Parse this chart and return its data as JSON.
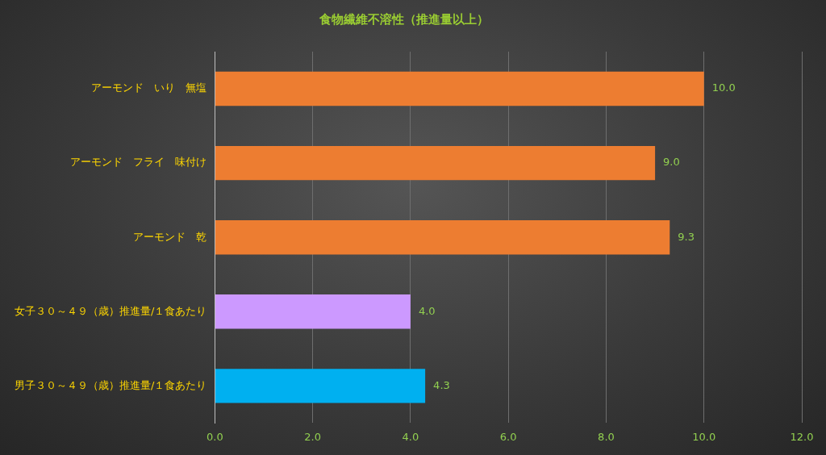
{
  "chart_data": {
    "type": "bar",
    "orientation": "horizontal",
    "title": "食物繊維不溶性（推進量以上）",
    "categories": [
      "アーモンド　いり　無塩",
      "アーモンド　フライ　味付け",
      "アーモンド　乾",
      "女子３０～４９（歳）推進量/１食あたり",
      "男子３０～４９（歳）推進量/１食あたり"
    ],
    "values": [
      10.0,
      9.0,
      9.3,
      4.0,
      4.3
    ],
    "colors": [
      "#ed7d31",
      "#ed7d31",
      "#ed7d31",
      "#cc99ff",
      "#00b0f0"
    ],
    "value_labels": [
      "10.0",
      "9.0",
      "9.3",
      "4.0",
      "4.3"
    ],
    "xlim": [
      0,
      12
    ],
    "xticks": [
      {
        "value": 0,
        "label": "0.0"
      },
      {
        "value": 2,
        "label": "2.0"
      },
      {
        "value": 4,
        "label": "4.0"
      },
      {
        "value": 6,
        "label": "6.0"
      },
      {
        "value": 8,
        "label": "8.0"
      },
      {
        "value": 10,
        "label": "10.0"
      },
      {
        "value": 12,
        "label": "12.0"
      }
    ],
    "grid": "x",
    "legend": false
  }
}
